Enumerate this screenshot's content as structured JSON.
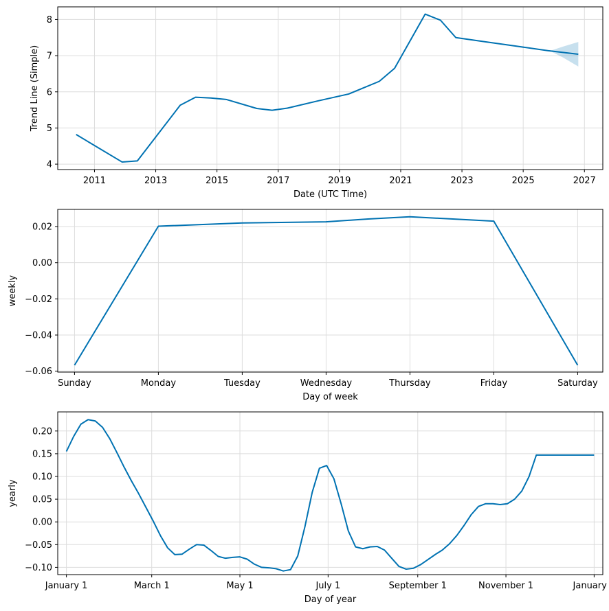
{
  "chart_data": [
    {
      "id": "trend",
      "type": "line",
      "title": "",
      "xlabel": "Date (UTC Time)",
      "ylabel": "Trend Line (Simple)",
      "xlim": [
        2009.8,
        2027.6
      ],
      "ylim": [
        3.85,
        8.35
      ],
      "grid": true,
      "x_ticks": [
        2011,
        2013,
        2015,
        2017,
        2019,
        2021,
        2023,
        2025,
        2027
      ],
      "x_tick_labels": [
        "2011",
        "2013",
        "2015",
        "2017",
        "2019",
        "2021",
        "2023",
        "2025",
        "2027"
      ],
      "y_ticks": [
        4,
        5,
        6,
        7,
        8
      ],
      "y_tick_labels": [
        "4",
        "5",
        "6",
        "7",
        "8"
      ],
      "series": [
        {
          "name": "trend",
          "color": "#0072b2",
          "x": [
            2010.4,
            2011.9,
            2012.4,
            2013.8,
            2014.3,
            2014.8,
            2015.3,
            2016.3,
            2016.8,
            2017.3,
            2018.3,
            2019.3,
            2020.3,
            2020.8,
            2021.8,
            2022.3,
            2022.8,
            2023.8,
            2024.8,
            2025.8,
            2026.8
          ],
          "y": [
            4.82,
            4.06,
            4.09,
            5.63,
            5.85,
            5.83,
            5.79,
            5.54,
            5.49,
            5.55,
            5.75,
            5.94,
            6.29,
            6.65,
            8.15,
            7.98,
            7.5,
            7.38,
            7.26,
            7.14,
            7.04
          ]
        }
      ],
      "uncertainty_band": {
        "color": "#0072b2",
        "x": [
          2025.9,
          2026.3,
          2026.8
        ],
        "lower": [
          7.12,
          6.95,
          6.7
        ],
        "upper": [
          7.14,
          7.25,
          7.38
        ]
      }
    },
    {
      "id": "weekly",
      "type": "line",
      "title": "",
      "xlabel": "Day of week",
      "ylabel": "weekly",
      "xlim": [
        -0.2,
        6.3
      ],
      "ylim": [
        -0.0605,
        0.0295
      ],
      "grid": true,
      "categories": [
        "Sunday",
        "Monday",
        "Tuesday",
        "Wednesday",
        "Thursday",
        "Friday",
        "Saturday"
      ],
      "y_ticks": [
        -0.06,
        -0.04,
        -0.02,
        0.0,
        0.02
      ],
      "y_tick_labels": [
        "−0.06",
        "−0.04",
        "−0.02",
        "0.00",
        "0.02"
      ],
      "series": [
        {
          "name": "weekly",
          "color": "#0072b2",
          "x": [
            0,
            1,
            2,
            3,
            3.5,
            4,
            5,
            6
          ],
          "y": [
            -0.0567,
            0.0202,
            0.022,
            0.0226,
            0.0242,
            0.0254,
            0.023,
            -0.0567
          ]
        }
      ]
    },
    {
      "id": "yearly",
      "type": "line",
      "title": "",
      "xlabel": "Day of year",
      "ylabel": "yearly",
      "xlim": [
        -6,
        371
      ],
      "ylim": [
        -0.116,
        0.242
      ],
      "grid": true,
      "x_ticks": [
        0,
        59,
        120,
        181,
        243,
        304,
        365
      ],
      "x_tick_labels": [
        "January 1",
        "March 1",
        "May 1",
        "July 1",
        "September 1",
        "November 1",
        "January 1"
      ],
      "y_ticks": [
        -0.1,
        -0.05,
        0.0,
        0.05,
        0.1,
        0.15,
        0.2
      ],
      "y_tick_labels": [
        "−0.10",
        "−0.05",
        "0.00",
        "0.05",
        "0.10",
        "0.15",
        "0.20"
      ],
      "series": [
        {
          "name": "yearly",
          "color": "#0072b2",
          "x": [
            0,
            5,
            10,
            15,
            20,
            25,
            30,
            35,
            40,
            45,
            50,
            55,
            60,
            65,
            70,
            75,
            80,
            85,
            90,
            95,
            100,
            105,
            110,
            115,
            120,
            125,
            130,
            135,
            140,
            145,
            150,
            155,
            160,
            165,
            170,
            175,
            180,
            185,
            190,
            195,
            200,
            205,
            210,
            215,
            220,
            225,
            230,
            235,
            240,
            245,
            250,
            255,
            260,
            265,
            270,
            275,
            280,
            285,
            290,
            295,
            300,
            305,
            310,
            315,
            320,
            325,
            330,
            335,
            340,
            345,
            350,
            355,
            360,
            365
          ],
          "y": [
            0.155,
            0.188,
            0.215,
            0.225,
            0.222,
            0.208,
            0.183,
            0.152,
            0.12,
            0.09,
            0.062,
            0.032,
            0.002,
            -0.03,
            -0.057,
            -0.072,
            -0.071,
            -0.06,
            -0.05,
            -0.051,
            -0.063,
            -0.076,
            -0.08,
            -0.078,
            -0.077,
            -0.082,
            -0.093,
            -0.1,
            -0.101,
            -0.103,
            -0.108,
            -0.105,
            -0.075,
            -0.01,
            0.065,
            0.118,
            0.124,
            0.095,
            0.04,
            -0.02,
            -0.055,
            -0.059,
            -0.055,
            -0.054,
            -0.062,
            -0.08,
            -0.098,
            -0.104,
            -0.102,
            -0.094,
            -0.083,
            -0.072,
            -0.062,
            -0.048,
            -0.03,
            -0.008,
            0.016,
            0.034,
            0.04,
            0.04,
            0.038,
            0.04,
            0.05,
            0.068,
            0.1,
            0.147,
            0.147,
            0.147,
            0.147,
            0.147,
            0.147,
            0.147,
            0.147,
            0.147
          ]
        }
      ]
    }
  ]
}
